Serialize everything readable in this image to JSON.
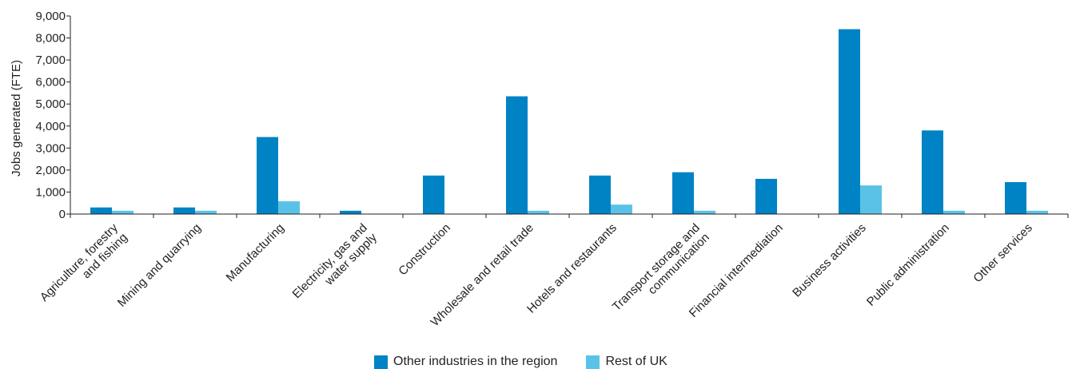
{
  "chart_data": {
    "type": "bar",
    "title": "",
    "xlabel": "",
    "ylabel": "Jobs generated (FTE)",
    "ylim": [
      0,
      9000
    ],
    "yticks": [
      0,
      1000,
      2000,
      3000,
      4000,
      5000,
      6000,
      7000,
      8000,
      9000
    ],
    "ytick_labels": [
      "0",
      "1,000",
      "2,000",
      "3,000",
      "4,000",
      "5,000",
      "6,000",
      "7,000",
      "8,000",
      "9,000"
    ],
    "categories": [
      [
        "Agriculture, forestry",
        "and fishing"
      ],
      [
        "Mining and quarrying"
      ],
      [
        "Manufacturing"
      ],
      [
        "Electricity, gas and",
        "water supply"
      ],
      [
        "Construction"
      ],
      [
        "Wholesale and retail trade"
      ],
      [
        "Hotels and restaurants"
      ],
      [
        "Transport storage and",
        "communication"
      ],
      [
        "Financial intermediation"
      ],
      [
        "Business activities"
      ],
      [
        "Public administration"
      ],
      [
        "Other services"
      ]
    ],
    "series": [
      {
        "name": "Other industries in the region",
        "color": "#0083c4",
        "values": [
          300,
          300,
          3500,
          150,
          1750,
          5350,
          1750,
          1900,
          1600,
          8400,
          3800,
          1450
        ]
      },
      {
        "name": "Rest of UK",
        "color": "#5bc2e7",
        "values": [
          150,
          150,
          580,
          0,
          0,
          150,
          430,
          150,
          0,
          1300,
          150,
          150
        ]
      }
    ],
    "legend_position": "bottom",
    "grid": false
  }
}
